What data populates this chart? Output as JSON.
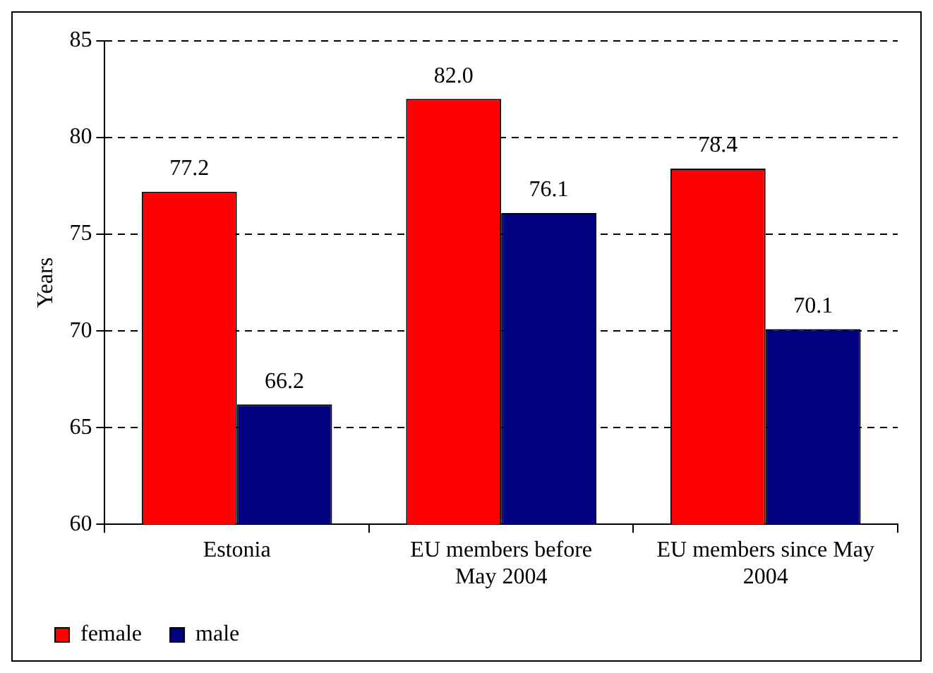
{
  "chart_data": {
    "type": "bar",
    "ylabel": "Years",
    "categories": [
      "Estonia",
      "EU members before May 2004",
      "EU members since May 2004"
    ],
    "series": [
      {
        "name": "female",
        "color": "#ff0000",
        "values": [
          77.2,
          82.0,
          78.4
        ],
        "value_labels": [
          "77.2",
          "82.0",
          "78.4"
        ]
      },
      {
        "name": "male",
        "color": "#000080",
        "values": [
          66.2,
          76.1,
          70.1
        ],
        "value_labels": [
          "66.2",
          "76.1",
          "70.1"
        ]
      }
    ],
    "ylim": [
      60,
      85
    ],
    "yticks": [
      60,
      65,
      70,
      75,
      80,
      85
    ],
    "grid": "y",
    "legend": "bottom left"
  }
}
